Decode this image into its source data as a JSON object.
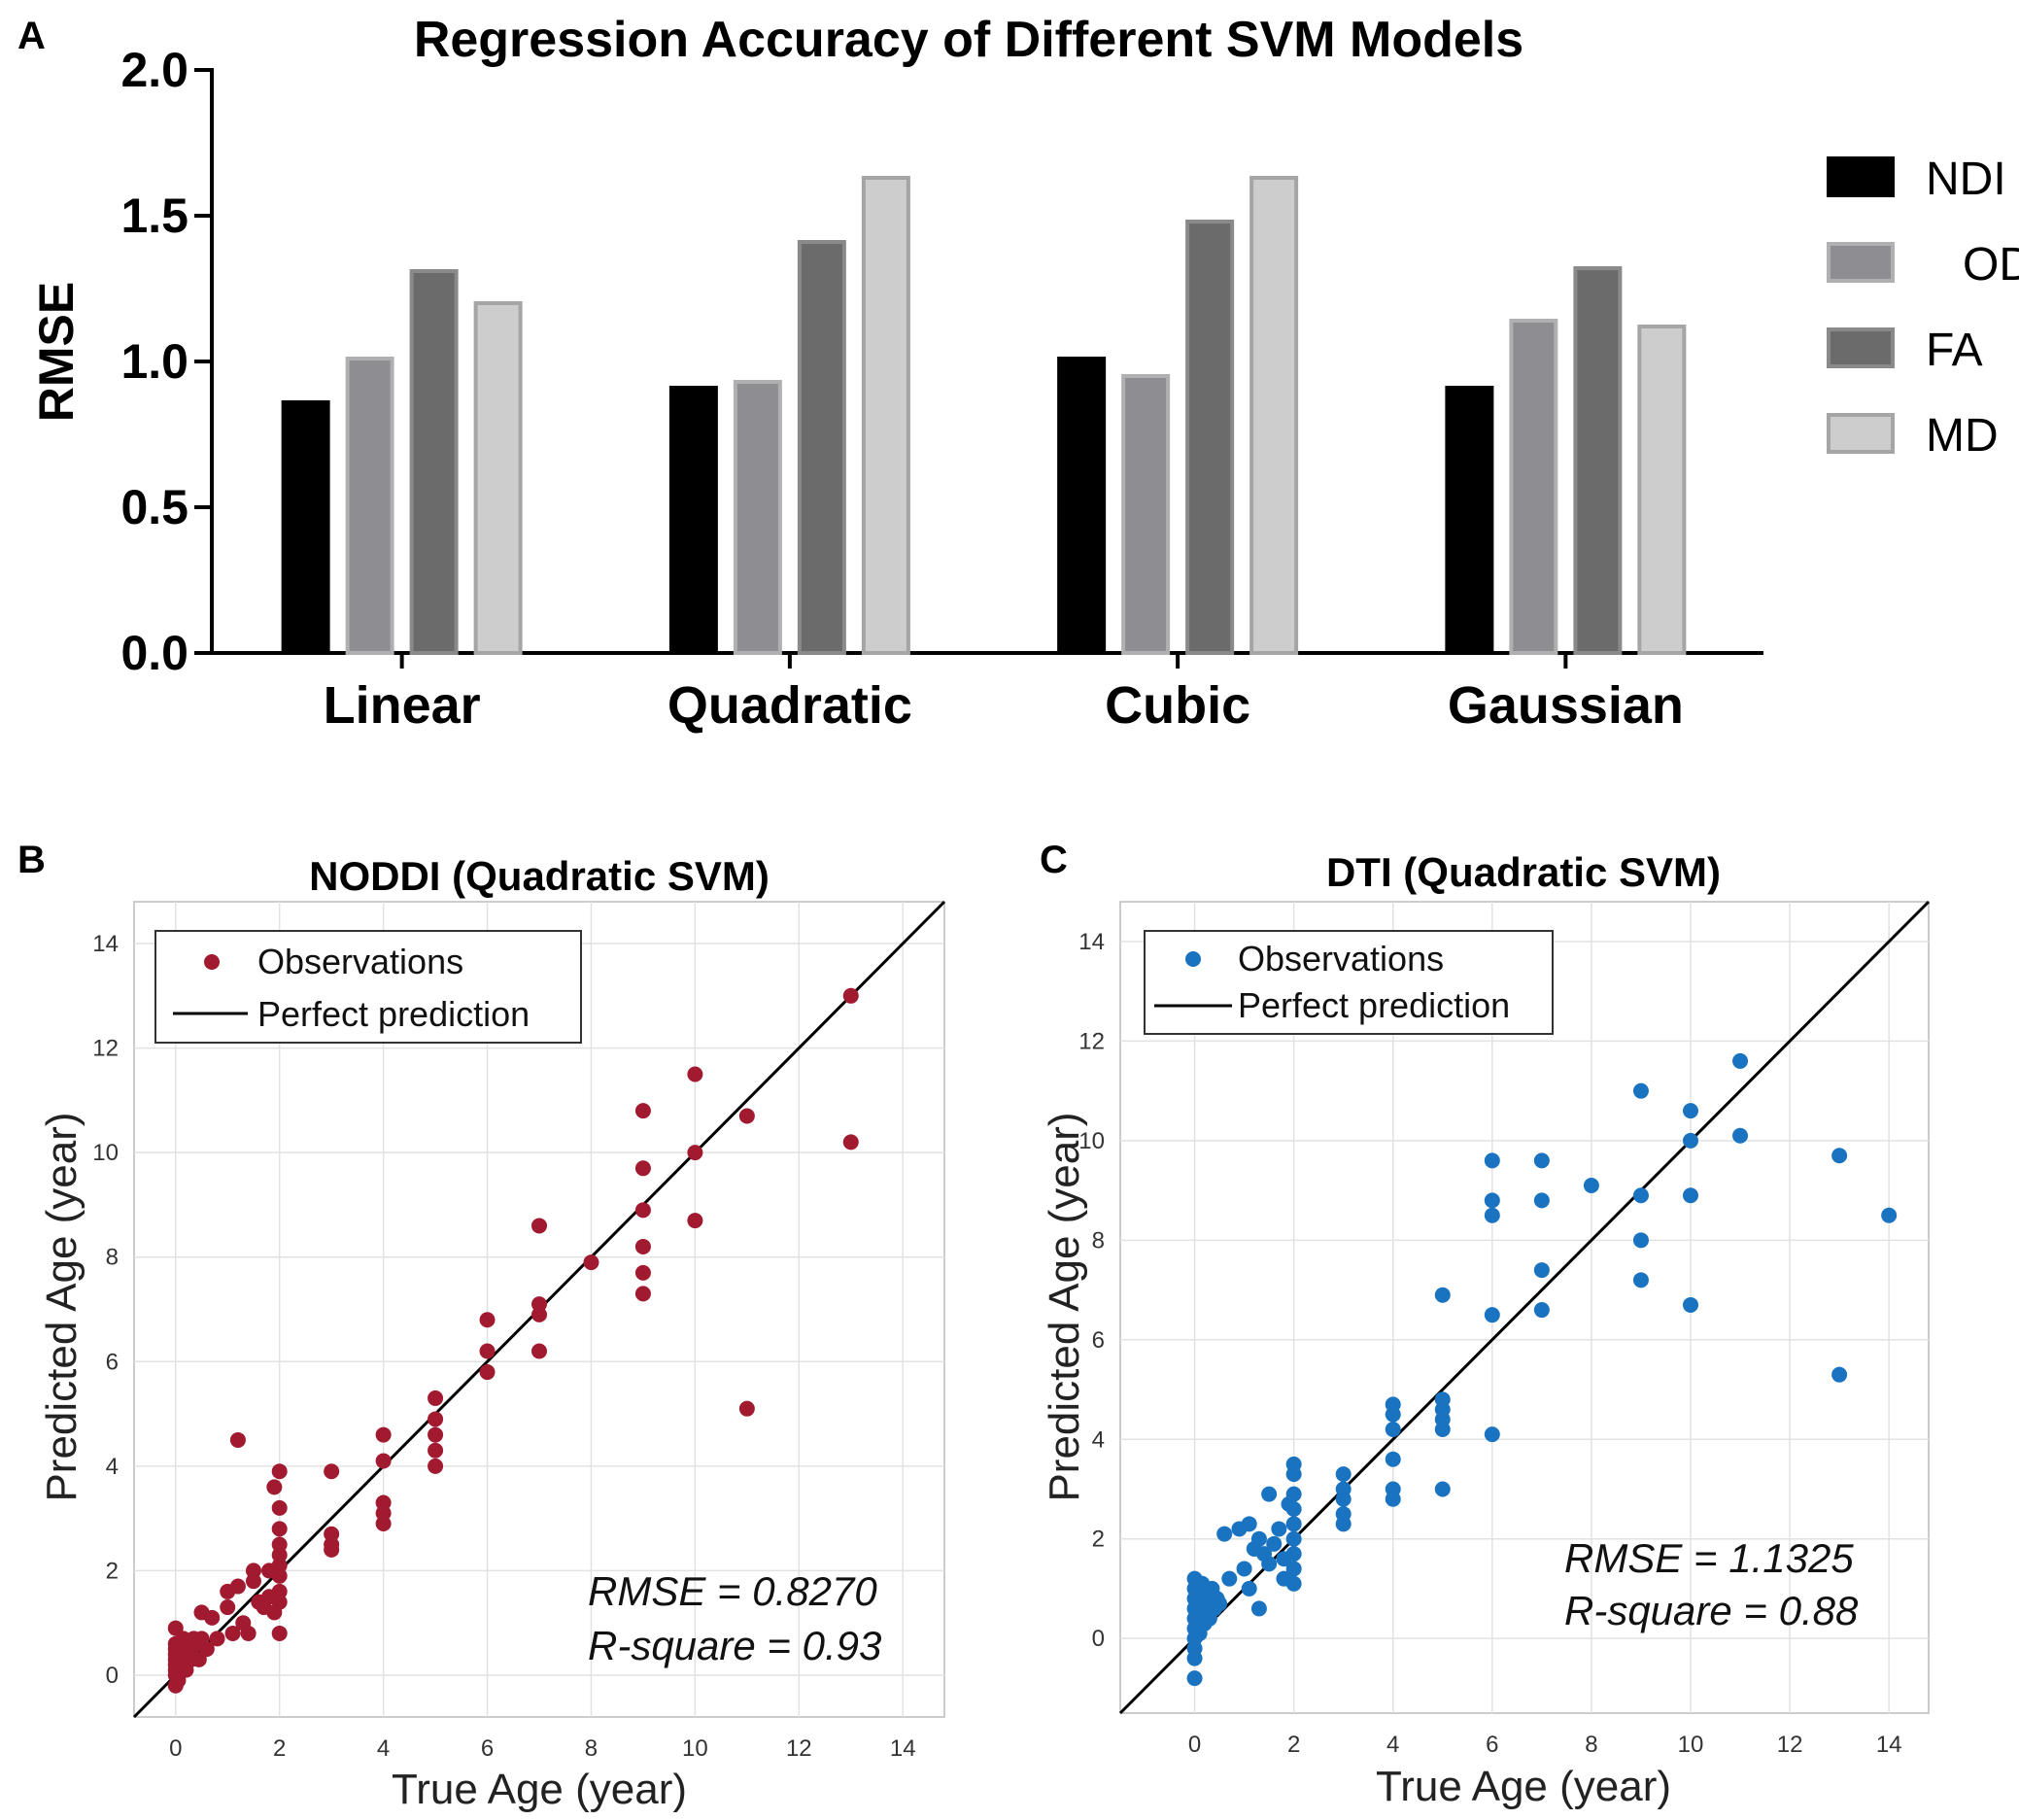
{
  "chart_data": [
    {
      "type": "bar",
      "panel_label": "A",
      "title": "Regression Accuracy of Different SVM Models",
      "xlabel": "",
      "ylabel": "RMSE",
      "ylim": [
        0,
        2
      ],
      "yticks": [
        "0.0",
        "0.5",
        "1.0",
        "1.5",
        "2.0"
      ],
      "categories": [
        "Linear",
        "Quadratic",
        "Cubic",
        "Gaussian"
      ],
      "series": [
        {
          "name": "NDI",
          "color": "#000000",
          "values": [
            0.86,
            0.91,
            1.01,
            0.91
          ]
        },
        {
          "name": "ODI",
          "color": "#8e8e92",
          "values": [
            1.01,
            0.93,
            0.95,
            1.14
          ]
        },
        {
          "name": "FA",
          "color": "#6b6b6b",
          "values": [
            1.31,
            1.41,
            1.48,
            1.32
          ]
        },
        {
          "name": "MD",
          "color": "#cdcdcd",
          "values": [
            1.2,
            1.63,
            1.63,
            1.12
          ]
        }
      ],
      "legend_position": "right"
    },
    {
      "type": "scatter",
      "panel_label": "B",
      "title": "NODDI  (Quadratic SVM)",
      "xlabel": "True Age (year)",
      "ylabel": "Predicted Age (year)",
      "xlim": [
        -0.8,
        14.8
      ],
      "ylim": [
        -0.8,
        14.8
      ],
      "ticks": [
        "0",
        "2",
        "4",
        "6",
        "8",
        "10",
        "12",
        "14"
      ],
      "grid": true,
      "legend": {
        "observations": "Observations",
        "line": "Perfect prediction"
      },
      "marker_color": "#a11a30",
      "stats": {
        "rmse": "RMSE = 0.8270",
        "r_square": "R-square = 0.93"
      },
      "points": [
        [
          0,
          -0.2
        ],
        [
          0,
          0
        ],
        [
          0,
          0.1
        ],
        [
          0,
          0.2
        ],
        [
          0,
          0.3
        ],
        [
          0,
          0.4
        ],
        [
          0,
          0.5
        ],
        [
          0,
          0.6
        ],
        [
          0,
          0.9
        ],
        [
          0.05,
          -0.1
        ],
        [
          0.1,
          0.5
        ],
        [
          0.1,
          0.2
        ],
        [
          0.15,
          0.7
        ],
        [
          0.2,
          0.4
        ],
        [
          0.2,
          0.1
        ],
        [
          0.25,
          0.6
        ],
        [
          0.3,
          0.5
        ],
        [
          0.3,
          0.3
        ],
        [
          0.35,
          0.7
        ],
        [
          0.4,
          0.6
        ],
        [
          0.45,
          0.3
        ],
        [
          0.5,
          0.7
        ],
        [
          0.5,
          1.2
        ],
        [
          0.6,
          0.5
        ],
        [
          0.7,
          1.1
        ],
        [
          0.8,
          0.7
        ],
        [
          1,
          1.6
        ],
        [
          1,
          1.3
        ],
        [
          1.1,
          0.8
        ],
        [
          1.2,
          1.7
        ],
        [
          1.2,
          4.5
        ],
        [
          1.3,
          1.0
        ],
        [
          1.4,
          0.8
        ],
        [
          1.5,
          2.0
        ],
        [
          1.5,
          1.8
        ],
        [
          1.6,
          1.4
        ],
        [
          1.7,
          1.3
        ],
        [
          1.8,
          2.0
        ],
        [
          1.8,
          1.5
        ],
        [
          1.9,
          3.6
        ],
        [
          1.9,
          1.2
        ],
        [
          2,
          3.9
        ],
        [
          2,
          3.2
        ],
        [
          2,
          2.8
        ],
        [
          2,
          2.5
        ],
        [
          2,
          2.3
        ],
        [
          2,
          2.1
        ],
        [
          2,
          1.9
        ],
        [
          2,
          1.6
        ],
        [
          2,
          1.4
        ],
        [
          2,
          0.8
        ],
        [
          3,
          3.9
        ],
        [
          3,
          2.7
        ],
        [
          3,
          2.5
        ],
        [
          3,
          2.4
        ],
        [
          4,
          4.6
        ],
        [
          4,
          4.1
        ],
        [
          4,
          3.3
        ],
        [
          4,
          3.1
        ],
        [
          4,
          2.9
        ],
        [
          5,
          5.3
        ],
        [
          5,
          4.9
        ],
        [
          5,
          4.6
        ],
        [
          5,
          4.3
        ],
        [
          5,
          4.0
        ],
        [
          6,
          6.8
        ],
        [
          6,
          6.2
        ],
        [
          6,
          5.8
        ],
        [
          7,
          8.6
        ],
        [
          7,
          7.1
        ],
        [
          7,
          6.9
        ],
        [
          7,
          6.2
        ],
        [
          8,
          7.9
        ],
        [
          9,
          10.8
        ],
        [
          9,
          9.7
        ],
        [
          9,
          8.9
        ],
        [
          9,
          8.2
        ],
        [
          9,
          7.7
        ],
        [
          9,
          7.3
        ],
        [
          10,
          11.5
        ],
        [
          10,
          10.0
        ],
        [
          10,
          8.7
        ],
        [
          11,
          10.7
        ],
        [
          11,
          5.1
        ],
        [
          13,
          13.0
        ],
        [
          13,
          10.2
        ]
      ]
    },
    {
      "type": "scatter",
      "panel_label": "C",
      "title": "DTI  (Quadratic SVM)",
      "xlabel": "True Age (year)",
      "ylabel": "Predicted Age (year)",
      "xlim": [
        -1.5,
        14.8
      ],
      "ylim": [
        -1.5,
        14.8
      ],
      "ticks": [
        "0",
        "2",
        "4",
        "6",
        "8",
        "10",
        "12",
        "14"
      ],
      "grid": true,
      "legend": {
        "observations": "Observations",
        "line": "Perfect prediction"
      },
      "marker_color": "#1a73c0",
      "stats": {
        "rmse": "RMSE = 1.1325",
        "r_square": "R-square = 0.88"
      },
      "points": [
        [
          0,
          -0.8
        ],
        [
          0,
          -0.4
        ],
        [
          0,
          -0.2
        ],
        [
          0,
          0
        ],
        [
          0,
          0.2
        ],
        [
          0,
          0.4
        ],
        [
          0,
          0.6
        ],
        [
          0,
          0.8
        ],
        [
          0,
          1.0
        ],
        [
          0,
          1.2
        ],
        [
          0.1,
          0.1
        ],
        [
          0.1,
          0.5
        ],
        [
          0.1,
          0.8
        ],
        [
          0.15,
          1.1
        ],
        [
          0.2,
          0.3
        ],
        [
          0.2,
          0.6
        ],
        [
          0.25,
          0.9
        ],
        [
          0.3,
          0.4
        ],
        [
          0.3,
          0.7
        ],
        [
          0.35,
          1.0
        ],
        [
          0.4,
          0.6
        ],
        [
          0.45,
          0.8
        ],
        [
          0.5,
          0.7
        ],
        [
          0.6,
          2.1
        ],
        [
          0.7,
          1.2
        ],
        [
          0.9,
          2.2
        ],
        [
          1.0,
          1.4
        ],
        [
          1.1,
          2.3
        ],
        [
          1.1,
          1.0
        ],
        [
          1.2,
          1.8
        ],
        [
          1.3,
          2.0
        ],
        [
          1.3,
          0.6
        ],
        [
          1.4,
          1.7
        ],
        [
          1.5,
          2.9
        ],
        [
          1.5,
          1.5
        ],
        [
          1.6,
          1.9
        ],
        [
          1.7,
          2.2
        ],
        [
          1.8,
          1.6
        ],
        [
          1.8,
          1.2
        ],
        [
          1.9,
          2.7
        ],
        [
          2,
          3.5
        ],
        [
          2,
          3.3
        ],
        [
          2,
          2.9
        ],
        [
          2,
          2.6
        ],
        [
          2,
          2.3
        ],
        [
          2,
          2.0
        ],
        [
          2,
          1.7
        ],
        [
          2,
          1.4
        ],
        [
          2,
          1.1
        ],
        [
          3,
          3.3
        ],
        [
          3,
          3.0
        ],
        [
          3,
          2.8
        ],
        [
          3,
          2.5
        ],
        [
          3,
          2.3
        ],
        [
          4,
          4.7
        ],
        [
          4,
          4.5
        ],
        [
          4,
          4.2
        ],
        [
          4,
          3.6
        ],
        [
          4,
          3.0
        ],
        [
          4,
          2.8
        ],
        [
          5,
          6.9
        ],
        [
          5,
          4.8
        ],
        [
          5,
          4.6
        ],
        [
          5,
          4.4
        ],
        [
          5,
          4.2
        ],
        [
          5,
          3.0
        ],
        [
          6,
          9.6
        ],
        [
          6,
          8.8
        ],
        [
          6,
          8.5
        ],
        [
          6,
          6.5
        ],
        [
          6,
          4.1
        ],
        [
          7,
          9.6
        ],
        [
          7,
          8.8
        ],
        [
          7,
          7.4
        ],
        [
          7,
          6.6
        ],
        [
          8,
          9.1
        ],
        [
          9,
          11.0
        ],
        [
          9,
          8.9
        ],
        [
          9,
          8.0
        ],
        [
          9,
          7.2
        ],
        [
          10,
          10.6
        ],
        [
          10,
          10.0
        ],
        [
          10,
          8.9
        ],
        [
          10,
          6.7
        ],
        [
          11,
          11.6
        ],
        [
          11,
          10.1
        ],
        [
          13,
          9.7
        ],
        [
          13,
          5.3
        ],
        [
          14,
          8.5
        ]
      ]
    }
  ]
}
